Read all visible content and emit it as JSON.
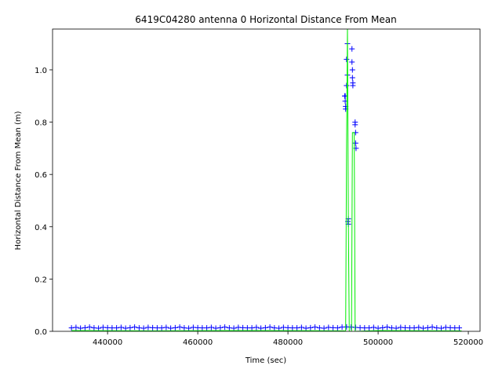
{
  "chart_data": {
    "type": "line",
    "title": "6419C04280 antenna 0 Horizontal Distance From Mean",
    "x_label": "Time (sec)",
    "y_label": "Horizontal Distance From Mean (m)",
    "xlim": [
      427800,
      522600
    ],
    "ylim": [
      0,
      1.156
    ],
    "xticks": [
      440000,
      460000,
      480000,
      500000,
      520000
    ],
    "yticks": [
      {
        "value": 0,
        "label": "0.0"
      },
      0.2,
      0.4,
      0.6,
      0.8,
      {
        "value": 1,
        "label": "1.0"
      }
    ],
    "series": [
      {
        "color": "#0000ff",
        "marker": "+",
        "x": [
          432000,
          433000,
          434000,
          435000,
          436000,
          437000,
          438000,
          439000,
          440000,
          441000,
          442000,
          443000,
          444000,
          445000,
          446000,
          447000,
          448000,
          449000,
          450000,
          451000,
          452000,
          453000,
          454000,
          455000,
          456000,
          457000,
          458000,
          459000,
          460000,
          461000,
          462000,
          463000,
          464000,
          465000,
          466000,
          467000,
          468000,
          469000,
          470000,
          471000,
          472000,
          473000,
          474000,
          475000,
          476000,
          477000,
          478000,
          479000,
          480000,
          481000,
          482000,
          483000,
          484000,
          485000,
          486000,
          487000,
          488000,
          489000,
          490000,
          491000,
          492000,
          493000,
          494000,
          495000,
          496000,
          497000,
          498000,
          499000,
          500000,
          501000,
          502000,
          503000,
          504000,
          505000,
          506000,
          507000,
          508000,
          509000,
          510000,
          511000,
          512000,
          513000,
          514000,
          515000,
          516000,
          517000,
          518000,
          492600,
          492700,
          492700,
          492800,
          492800,
          493000,
          493000,
          493200,
          493200,
          493300,
          493400,
          493400,
          494200,
          494200,
          494300,
          494300,
          494400,
          494400,
          494900,
          494900,
          495000,
          495000,
          495100
        ],
        "values": [
          0.013,
          0.015,
          0.012,
          0.014,
          0.016,
          0.013,
          0.012,
          0.015,
          0.014,
          0.013,
          0.013,
          0.015,
          0.012,
          0.014,
          0.016,
          0.013,
          0.012,
          0.015,
          0.014,
          0.013,
          0.013,
          0.015,
          0.012,
          0.014,
          0.016,
          0.013,
          0.012,
          0.015,
          0.014,
          0.013,
          0.013,
          0.015,
          0.012,
          0.014,
          0.016,
          0.013,
          0.012,
          0.015,
          0.014,
          0.013,
          0.013,
          0.015,
          0.012,
          0.014,
          0.016,
          0.013,
          0.012,
          0.015,
          0.014,
          0.013,
          0.013,
          0.015,
          0.012,
          0.014,
          0.016,
          0.013,
          0.012,
          0.015,
          0.014,
          0.013,
          0.016,
          0.017,
          0.016,
          0.015,
          0.014,
          0.013,
          0.013,
          0.015,
          0.012,
          0.014,
          0.016,
          0.013,
          0.012,
          0.015,
          0.014,
          0.013,
          0.013,
          0.015,
          0.012,
          0.014,
          0.016,
          0.013,
          0.012,
          0.015,
          0.014,
          0.013,
          0.013,
          0.9,
          0.9,
          0.88,
          0.86,
          0.85,
          0.94,
          1.04,
          0.98,
          1.1,
          0.42,
          0.41,
          0.43,
          1.08,
          1.03,
          1.0,
          0.97,
          0.95,
          0.94,
          0.8,
          0.79,
          0.76,
          0.72,
          0.7
        ]
      },
      {
        "color": "#00ee00",
        "x": [
          432000,
          450000,
          470000,
          492500,
          492800,
          493000,
          493200,
          493400,
          493600,
          494100,
          494300,
          494700,
          494900,
          500000,
          518500
        ],
        "values": [
          0.003,
          0.002,
          0.003,
          0.002,
          0.0,
          0.72,
          1.16,
          0.42,
          0.0,
          0.0,
          0.76,
          0.76,
          0.0,
          0.003,
          0.002
        ]
      }
    ]
  }
}
